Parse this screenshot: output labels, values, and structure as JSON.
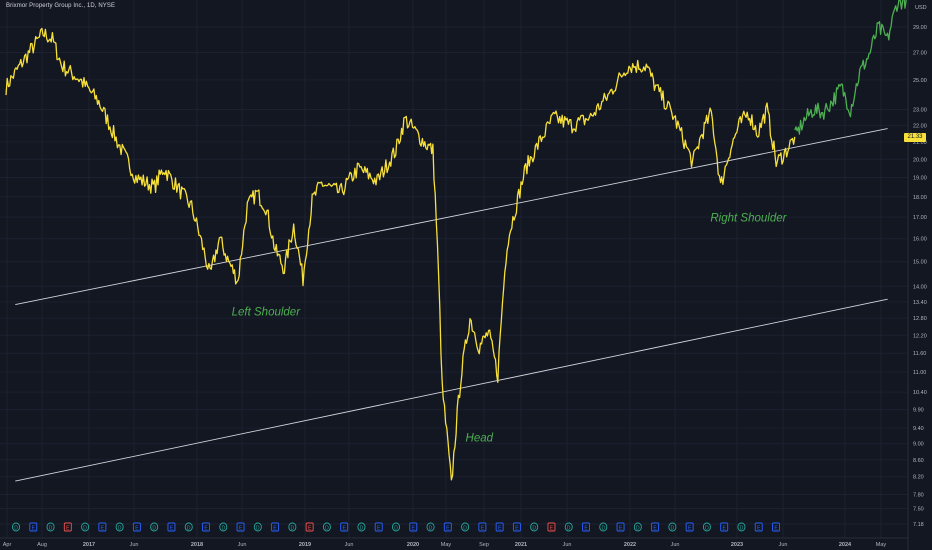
{
  "header": {
    "title": "Brixmor Property Group Inc., 1D, NYSE"
  },
  "colors": {
    "background": "#131722",
    "price_line": "#f7e03a",
    "recent_line": "#4caf50",
    "trendline": "#d1d4dc",
    "annotation": "#4caf50",
    "axis_text": "#b2b5be"
  },
  "chart_data": {
    "type": "line",
    "title": "Brixmor Property Group Inc., 1D, NYSE",
    "currency": "USD",
    "log_scale": true,
    "ylim": [
      7.1,
      31.5
    ],
    "current_price": "21.33",
    "y_ticks": [
      "29.00",
      "27.00",
      "25.00",
      "23.00",
      "22.00",
      "21.00",
      "20.00",
      "19.00",
      "18.00",
      "17.00",
      "16.00",
      "15.00",
      "14.00",
      "13.40",
      "12.80",
      "12.20",
      "11.60",
      "11.00",
      "10.40",
      "9.90",
      "9.40",
      "9.00",
      "8.60",
      "8.20",
      "7.80",
      "7.50",
      "7.18"
    ],
    "x_ticks": [
      "Apr",
      "Aug",
      "2017",
      "Jun",
      "2018",
      "Jun",
      "2019",
      "Jun",
      "2020",
      "May",
      "Sep",
      "2021",
      "Jun",
      "2022",
      "Jun",
      "2023",
      "Jun",
      "2024",
      "May"
    ],
    "series": [
      {
        "x": [
          "2016-04",
          "2016-06",
          "2016-08",
          "2016-09",
          "2016-10",
          "2016-12",
          "2017-02",
          "2017-04",
          "2017-06",
          "2017-08",
          "2017-09",
          "2017-10",
          "2017-12",
          "2018-02",
          "2018-03",
          "2018-04",
          "2018-05",
          "2018-06",
          "2018-07",
          "2018-08",
          "2018-09",
          "2018-10",
          "2018-11",
          "2018-12",
          "2019-01",
          "2019-02",
          "2019-04",
          "2019-06",
          "2019-08",
          "2019-10",
          "2019-11",
          "2020-01",
          "2020-02",
          "2020-03",
          "2020-04",
          "2020-05",
          "2020-06",
          "2020-07",
          "2020-08",
          "2020-09",
          "2020-10",
          "2020-11",
          "2020-12",
          "2021-03",
          "2021-05",
          "2021-07",
          "2021-09",
          "2021-11",
          "2022-01",
          "2022-02",
          "2022-04",
          "2022-06",
          "2022-07",
          "2022-08",
          "2022-09",
          "2022-10",
          "2022-11",
          "2022-12",
          "2023-01",
          "2023-02",
          "2023-03",
          "2023-04",
          "2023-05"
        ],
        "values": [
          24.5,
          26.5,
          28.5,
          28.0,
          26.0,
          25.0,
          23.5,
          21.0,
          19.0,
          18.5,
          19.5,
          18.8,
          17.5,
          14.4,
          16.0,
          15.0,
          14.2,
          17.5,
          18.2,
          17.5,
          15.5,
          14.7,
          16.6,
          14.3,
          17.8,
          18.7,
          18.2,
          19.5,
          18.8,
          20.5,
          22.4,
          21.0,
          20.5,
          10.5,
          8.0,
          10.8,
          12.8,
          11.8,
          12.3,
          10.9,
          15.8,
          17.6,
          19.5,
          22.5,
          22.0,
          22.5,
          24.0,
          26.0,
          26.0,
          24.5,
          22.5,
          19.8,
          21.5,
          22.8,
          18.5,
          20.5,
          22.0,
          22.8,
          21.5,
          23.0,
          19.8,
          20.4,
          21.3
        ]
      },
      {
        "x": [
          "2023-05",
          "2023-06",
          "2023-07",
          "2023-08",
          "2023-09",
          "2023-10",
          "2023-11",
          "2023-12",
          "2024-01",
          "2024-02",
          "2024-03",
          "2024-04",
          "2024-05"
        ],
        "values": [
          21.3,
          22.3,
          23.0,
          22.8,
          23.5,
          24.5,
          23.0,
          25.5,
          26.8,
          29.0,
          28.0,
          31.0,
          31.3
        ]
      }
    ],
    "trendlines": [
      {
        "from": [
          "2016-05",
          13.3
        ],
        "to": [
          "2024-03",
          21.8
        ]
      },
      {
        "from": [
          "2016-05",
          8.1
        ],
        "to": [
          "2024-03",
          13.5
        ]
      }
    ],
    "annotations": [
      {
        "text": "Left Shoulder",
        "at": [
          "2018-08",
          12.9
        ]
      },
      {
        "text": "Head",
        "at": [
          "2020-07",
          9.05
        ]
      },
      {
        "text": "Right Shoulder",
        "at": [
          "2022-12",
          16.8
        ]
      }
    ],
    "event_markers": [
      "D",
      "E",
      "D",
      "E",
      "D",
      "E",
      "D",
      "E",
      "D",
      "E",
      "D",
      "E",
      "D",
      "E",
      "D",
      "E",
      "D",
      "E",
      "D",
      "E",
      "D",
      "E",
      "D",
      "E",
      "D",
      "E",
      "D",
      "E",
      "E",
      "E",
      "D",
      "E",
      "D",
      "E",
      "D",
      "E",
      "D",
      "E",
      "D",
      "E",
      "D",
      "E",
      "D",
      "E",
      "E"
    ]
  }
}
